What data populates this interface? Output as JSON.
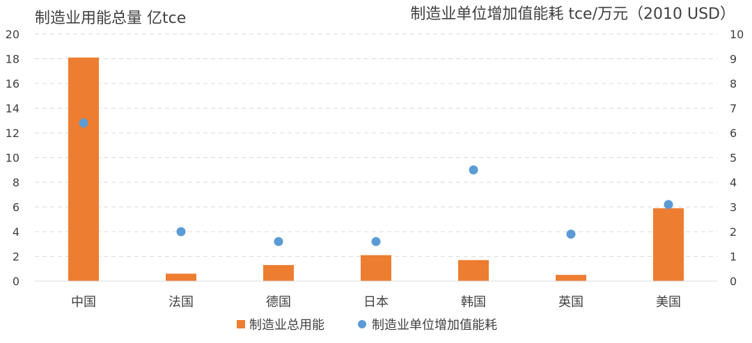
{
  "chart_data": {
    "type": "bar",
    "title_left": "制造业用能总量 亿tce",
    "title_right": "制造业单位增加值能耗 tce/万元（2010 USD）",
    "categories": [
      "中国",
      "法国",
      "德国",
      "日本",
      "韩国",
      "英国",
      "美国"
    ],
    "series": [
      {
        "name": "制造业总用能",
        "type": "bar",
        "axis": "left",
        "color": "#ED7D31",
        "values": [
          18.1,
          0.6,
          1.3,
          2.1,
          1.7,
          0.5,
          5.9
        ]
      },
      {
        "name": "制造业单位增加值能耗",
        "type": "scatter",
        "axis": "right",
        "color": "#5B9BD5",
        "values": [
          6.4,
          2.0,
          1.6,
          1.6,
          4.5,
          1.9,
          3.1
        ]
      }
    ],
    "y_left": {
      "ylim": [
        0,
        20
      ],
      "ticks": [
        "0",
        "2",
        "4",
        "6",
        "8",
        "10",
        "12",
        "14",
        "16",
        "18",
        "20"
      ]
    },
    "y_right": {
      "ylim": [
        0,
        10
      ],
      "ticks": [
        "0",
        "1",
        "2",
        "3",
        "4",
        "5",
        "6",
        "7",
        "8",
        "9",
        "10"
      ]
    },
    "grid": "horizontal dashed",
    "legend_position": "bottom"
  }
}
